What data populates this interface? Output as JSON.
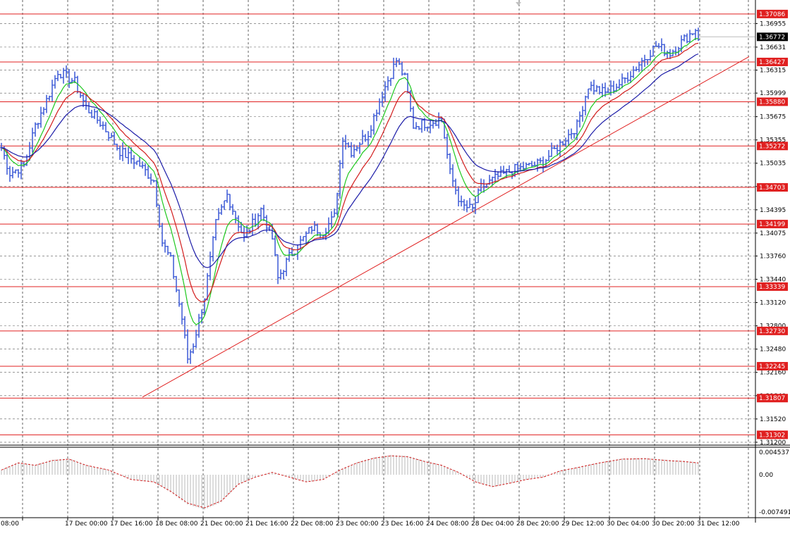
{
  "chart_data": [
    {
      "type": "candlestick",
      "instrument_note": "",
      "y_axis_labels": [
        "1.36955",
        "1.36631",
        "1.36315",
        "1.35999",
        "1.35675",
        "1.35355",
        "1.35035",
        "1.34715",
        "1.34395",
        "1.34075",
        "1.33760",
        "1.33440",
        "1.33120",
        "1.32800",
        "1.32480",
        "1.32160",
        "1.31840",
        "1.31520",
        "1.31200"
      ],
      "ylim": [
        1.3117,
        1.3723
      ],
      "current_price": "1.36772",
      "level_lines": [
        "1.37086",
        "1.36427",
        "1.35880",
        "1.35272",
        "1.34703",
        "1.34199",
        "1.33339",
        "1.32730",
        "1.32245",
        "1.31807",
        "1.31302"
      ],
      "colors": {
        "bars": "#3a59d6",
        "levels": "#e02020",
        "ma_fast": "#1ec81e",
        "ma_mid": "#d21c1c",
        "ma_slow": "#1c1ca8",
        "trendline": "#e02020",
        "grid": "#5a5a5a"
      },
      "x_tick_labels": [
        "08:00",
        "17 Dec 00:00",
        "17 Dec 16:00",
        "18 Dec 08:00",
        "21 Dec 00:00",
        "21 Dec 16:00",
        "22 Dec 08:00",
        "23 Dec 00:00",
        "23 Dec 16:00",
        "24 Dec 08:00",
        "28 Dec 04:00",
        "28 Dec 20:00",
        "29 Dec 12:00",
        "30 Dec 04:00",
        "30 Dec 20:00",
        "31 Dec 12:00"
      ],
      "x_tick_index": [
        0,
        16,
        32,
        48,
        64,
        80,
        96,
        112,
        128,
        144,
        160,
        176,
        192,
        208,
        224,
        240
      ],
      "anchors": [
        [
          0,
          1.3525
        ],
        [
          3,
          1.349
        ],
        [
          8,
          1.35
        ],
        [
          12,
          1.3555
        ],
        [
          16,
          1.359
        ],
        [
          20,
          1.363
        ],
        [
          26,
          1.3615
        ],
        [
          30,
          1.358
        ],
        [
          36,
          1.3555
        ],
        [
          42,
          1.352
        ],
        [
          48,
          1.3505
        ],
        [
          54,
          1.348
        ],
        [
          57,
          1.3395
        ],
        [
          60,
          1.337
        ],
        [
          64,
          1.329
        ],
        [
          66,
          1.3235
        ],
        [
          68,
          1.3255
        ],
        [
          72,
          1.332
        ],
        [
          76,
          1.342
        ],
        [
          80,
          1.346
        ],
        [
          83,
          1.343
        ],
        [
          86,
          1.34
        ],
        [
          92,
          1.344
        ],
        [
          96,
          1.34
        ],
        [
          98,
          1.3345
        ],
        [
          102,
          1.3375
        ],
        [
          106,
          1.3395
        ],
        [
          110,
          1.3415
        ],
        [
          114,
          1.341
        ],
        [
          118,
          1.343
        ],
        [
          121,
          1.354
        ],
        [
          124,
          1.352
        ],
        [
          130,
          1.3545
        ],
        [
          135,
          1.36
        ],
        [
          140,
          1.3645
        ],
        [
          143,
          1.362
        ],
        [
          146,
          1.3555
        ],
        [
          152,
          1.356
        ],
        [
          156,
          1.3565
        ],
        [
          159,
          1.349
        ],
        [
          163,
          1.3445
        ],
        [
          167,
          1.344
        ],
        [
          170,
          1.347
        ],
        [
          176,
          1.3485
        ],
        [
          182,
          1.3495
        ],
        [
          188,
          1.35
        ],
        [
          192,
          1.3505
        ],
        [
          198,
          1.353
        ],
        [
          204,
          1.3555
        ],
        [
          208,
          1.361
        ],
        [
          214,
          1.36
        ],
        [
          220,
          1.3615
        ],
        [
          226,
          1.364
        ],
        [
          232,
          1.3665
        ],
        [
          237,
          1.3655
        ],
        [
          241,
          1.367
        ],
        [
          246,
          1.3688
        ],
        [
          247,
          1.3677
        ]
      ],
      "ma_periods": [
        8,
        14,
        26
      ],
      "trendline": {
        "from": [
          50,
          1.3182
        ],
        "to": [
          265,
          1.365
        ]
      },
      "oscillator": {
        "labels": [
          "0.004537",
          "0.00",
          "-0.007491"
        ],
        "max": 0.004537,
        "min": -0.007491,
        "anchors": [
          [
            0,
            0.001
          ],
          [
            6,
            0.0025
          ],
          [
            12,
            0.002
          ],
          [
            18,
            0.003
          ],
          [
            24,
            0.0033
          ],
          [
            30,
            0.002
          ],
          [
            38,
            0.001
          ],
          [
            46,
            -0.001
          ],
          [
            54,
            -0.0015
          ],
          [
            60,
            -0.0035
          ],
          [
            66,
            -0.006
          ],
          [
            72,
            -0.007
          ],
          [
            78,
            -0.0055
          ],
          [
            84,
            -0.002
          ],
          [
            90,
            -0.0005
          ],
          [
            96,
            0.0005
          ],
          [
            102,
            -0.0005
          ],
          [
            108,
            -0.0015
          ],
          [
            114,
            -0.001
          ],
          [
            120,
            0.001
          ],
          [
            126,
            0.0025
          ],
          [
            132,
            0.0035
          ],
          [
            138,
            0.004
          ],
          [
            144,
            0.0038
          ],
          [
            150,
            0.0028
          ],
          [
            156,
            0.002
          ],
          [
            162,
            0.0005
          ],
          [
            168,
            -0.0015
          ],
          [
            174,
            -0.0025
          ],
          [
            180,
            -0.0018
          ],
          [
            186,
            -0.001
          ],
          [
            192,
            -0.0005
          ],
          [
            198,
            0.0008
          ],
          [
            204,
            0.0015
          ],
          [
            212,
            0.0025
          ],
          [
            220,
            0.0033
          ],
          [
            228,
            0.0034
          ],
          [
            236,
            0.003
          ],
          [
            242,
            0.0028
          ],
          [
            247,
            0.0025
          ]
        ]
      }
    }
  ]
}
